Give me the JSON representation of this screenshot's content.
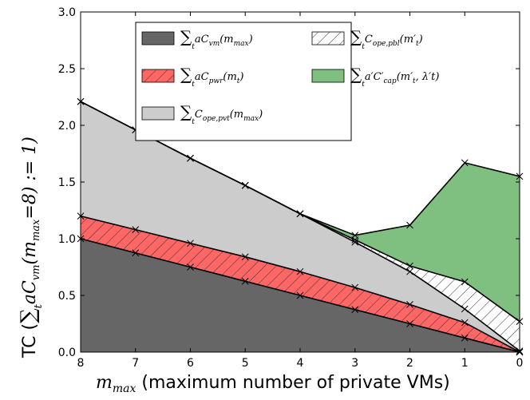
{
  "chart_data": {
    "type": "area",
    "x": [
      8,
      7,
      6,
      5,
      4,
      3,
      2,
      1,
      0
    ],
    "xlim": [
      8,
      0
    ],
    "ylim": [
      0,
      3.0
    ],
    "x_ticks": [
      8,
      7,
      6,
      5,
      4,
      3,
      2,
      1,
      0
    ],
    "y_ticks": [
      0.0,
      0.5,
      1.0,
      1.5,
      2.0,
      2.5,
      3.0
    ],
    "y_tick_labels": [
      "0.0",
      "0.5",
      "1.0",
      "1.5",
      "2.0",
      "2.5",
      "3.0"
    ],
    "xlabel_math": "m",
    "xlabel_math_sub": "max",
    "xlabel_text": "(maximum number of private VMs)",
    "ylabel_prefix": "TC (",
    "ylabel_math": "∑",
    "ylabel_math_sub": "t",
    "ylabel_rest": "aC",
    "ylabel_rest_sub": "vm",
    "ylabel_cond": "(m",
    "ylabel_cond_sub": "max",
    "ylabel_cond_rest": "=8) := 1)",
    "grid": false,
    "legend_position": "top-center",
    "series": [
      {
        "key": "cvm",
        "legend": "∑ aC_vm(m_max)",
        "legend_main": "aC",
        "legend_sub": "vm",
        "legend_arg": "(m",
        "legend_arg_sub": "max",
        "legend_tail": ")",
        "color": "#666666",
        "hatch": false,
        "top": [
          1.0,
          0.875,
          0.75,
          0.625,
          0.5,
          0.375,
          0.25,
          0.125,
          0.0
        ]
      },
      {
        "key": "cpwr",
        "legend": "∑ aC_pwr(m_t)",
        "legend_main": "aC",
        "legend_sub": "pwr",
        "legend_arg": "(m",
        "legend_arg_sub": "t",
        "legend_tail": ")",
        "color": "#ff6666",
        "hatch": true,
        "top": [
          1.2,
          1.08,
          0.96,
          0.84,
          0.71,
          0.57,
          0.42,
          0.26,
          0.0
        ]
      },
      {
        "key": "copepvt",
        "legend": "∑ C_ope,pvt(m_max)",
        "legend_main": "C",
        "legend_sub": "ope,pvt",
        "legend_arg": "(m",
        "legend_arg_sub": "max",
        "legend_tail": ")",
        "color": "#cccccc",
        "hatch": false,
        "top": [
          2.21,
          1.96,
          1.71,
          1.47,
          1.22,
          0.97,
          0.71,
          0.38,
          0.01
        ]
      },
      {
        "key": "copepbl",
        "legend": "∑ C_ope,pbl(m′_t)",
        "legend_main": "C",
        "legend_sub": "ope,pbl",
        "legend_arg": "(m′",
        "legend_arg_sub": "t",
        "legend_tail": ")",
        "color": "#ffffff",
        "hatch": true,
        "top": [
          2.21,
          1.96,
          1.71,
          1.47,
          1.22,
          0.99,
          0.76,
          0.62,
          0.27
        ]
      },
      {
        "key": "ccap",
        "legend": "∑ a′C′_cap(m′_t, λ′_t)",
        "legend_main": "a′C′",
        "legend_sub": "cap",
        "legend_arg": "(m′",
        "legend_arg_sub": "t",
        "legend_tail": ", λ′t)",
        "color": "#7fbf7f",
        "hatch": false,
        "top": [
          2.21,
          1.96,
          1.71,
          1.47,
          1.22,
          1.03,
          1.12,
          1.67,
          1.55
        ]
      }
    ]
  }
}
